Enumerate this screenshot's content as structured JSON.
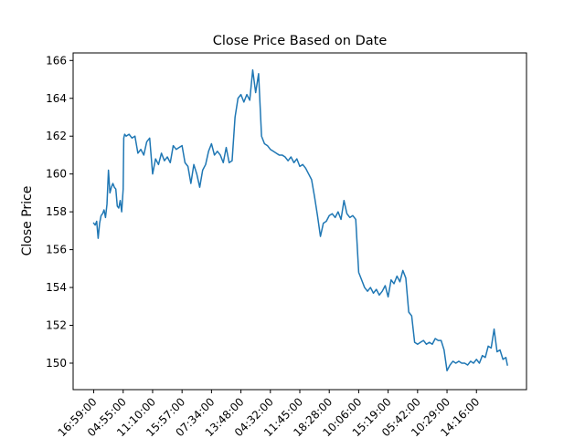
{
  "chart_data": {
    "type": "line",
    "title": "Close Price Based on Date",
    "xlabel": "",
    "ylabel": "Close Price",
    "ylim": [
      148.6,
      166.4
    ],
    "y_ticks": [
      150,
      152,
      154,
      156,
      158,
      160,
      162,
      164,
      166
    ],
    "x_tick_labels": [
      "16:59:00",
      "04:55:00",
      "11:10:00",
      "15:57:00",
      "07:34:00",
      "13:48:00",
      "04:32:00",
      "11:45:00",
      "18:28:00",
      "10:06:00",
      "15:19:00",
      "05:42:00",
      "10:29:00",
      "14:16:00"
    ],
    "x_tick_rotation": 45,
    "x_range": [
      -0.7,
      14.7
    ],
    "grid": false,
    "line_color": "#1f77b4",
    "series": [
      {
        "x": [
          0,
          0.05,
          0.1,
          0.15,
          0.2,
          0.25,
          0.3,
          0.35,
          0.4,
          0.45,
          0.5,
          0.55,
          0.6,
          0.65,
          0.7,
          0.75,
          0.8,
          0.85,
          0.9,
          0.95,
          1.0,
          1.02,
          1.05,
          1.1,
          1.2,
          1.3,
          1.4,
          1.5,
          1.6,
          1.7,
          1.8,
          1.9,
          2.0,
          2.1,
          2.2,
          2.3,
          2.4,
          2.5,
          2.6,
          2.7,
          2.8,
          2.9,
          3.0,
          3.1,
          3.2,
          3.3,
          3.4,
          3.5,
          3.6,
          3.7,
          3.8,
          3.9,
          4.0,
          4.1,
          4.2,
          4.3,
          4.4,
          4.5,
          4.6,
          4.7,
          4.8,
          4.9,
          5.0,
          5.1,
          5.2,
          5.3,
          5.4,
          5.5,
          5.6,
          5.7,
          5.8,
          5.9,
          6.0,
          6.1,
          6.2,
          6.3,
          6.4,
          6.5,
          6.6,
          6.7,
          6.8,
          6.9,
          7.0,
          7.1,
          7.2,
          7.3,
          7.4,
          7.5,
          7.6,
          7.7,
          7.8,
          7.9,
          8.0,
          8.1,
          8.2,
          8.3,
          8.4,
          8.5,
          8.6,
          8.7,
          8.8,
          8.9,
          9.0,
          9.1,
          9.2,
          9.3,
          9.4,
          9.5,
          9.6,
          9.7,
          9.8,
          9.9,
          10.0,
          10.1,
          10.2,
          10.3,
          10.4,
          10.5,
          10.6,
          10.7,
          10.8,
          10.9,
          11.0,
          11.1,
          11.2,
          11.3,
          11.4,
          11.5,
          11.6,
          11.7,
          11.8,
          11.9,
          12.0,
          12.1,
          12.2,
          12.3,
          12.4,
          12.5,
          12.6,
          12.7,
          12.8,
          12.9,
          13.0,
          13.1,
          13.2,
          13.3,
          13.4,
          13.5,
          13.6,
          13.7,
          13.8,
          13.9,
          14.0,
          14.05
        ],
        "y": [
          157.4,
          157.3,
          157.5,
          156.6,
          157.4,
          157.8,
          157.9,
          158.1,
          157.7,
          158.4,
          160.2,
          159.0,
          159.3,
          159.5,
          159.3,
          159.2,
          158.3,
          158.2,
          158.6,
          158.0,
          159.2,
          161.9,
          162.1,
          162.0,
          162.1,
          161.9,
          162.0,
          161.1,
          161.3,
          161.0,
          161.7,
          161.9,
          160.0,
          160.8,
          160.5,
          161.1,
          160.7,
          160.9,
          160.6,
          161.5,
          161.3,
          161.4,
          161.5,
          160.6,
          160.4,
          159.5,
          160.5,
          160.0,
          159.3,
          160.2,
          160.5,
          161.2,
          161.6,
          161.0,
          161.2,
          161.0,
          160.6,
          161.4,
          160.6,
          160.7,
          163.0,
          164.0,
          164.2,
          163.8,
          164.2,
          163.9,
          165.5,
          164.3,
          165.3,
          162.0,
          161.6,
          161.5,
          161.3,
          161.2,
          161.1,
          161.0,
          161.0,
          160.9,
          160.7,
          160.9,
          160.6,
          160.8,
          160.4,
          160.5,
          160.3,
          160.0,
          159.7,
          158.8,
          157.8,
          156.7,
          157.4,
          157.5,
          157.8,
          157.9,
          157.7,
          158.0,
          157.6,
          158.6,
          157.9,
          157.7,
          157.8,
          157.6,
          154.8,
          154.4,
          154.0,
          153.8,
          154.0,
          153.7,
          153.9,
          153.6,
          153.8,
          154.1,
          153.5,
          154.4,
          154.2,
          154.6,
          154.3,
          154.9,
          154.5,
          152.7,
          152.5,
          151.1,
          151.0,
          151.1,
          151.2,
          151.0,
          151.1,
          151.0,
          151.3,
          151.2,
          151.2,
          150.7,
          149.6,
          149.9,
          150.1,
          150.0,
          150.1,
          150.0,
          150.0,
          149.9,
          150.1,
          150.0,
          150.2,
          150.0,
          150.4,
          150.3,
          150.9,
          150.8,
          151.8,
          150.6,
          150.7,
          150.2,
          150.3,
          149.9
        ]
      }
    ]
  }
}
